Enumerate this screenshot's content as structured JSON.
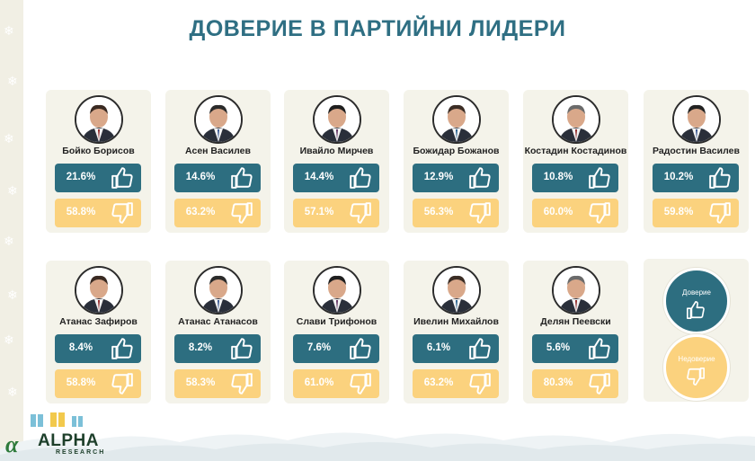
{
  "title": "ДОВЕРИЕ В ПАРТИЙНИ ЛИДЕРИ",
  "colors": {
    "trust": "#2d6e80",
    "distrust": "#fbd27e",
    "title": "#2f6f83",
    "card": "#f4f3ea"
  },
  "chart_data": {
    "type": "table",
    "title": "ДОВЕРИЕ В ПАРТИЙНИ ЛИДЕРИ",
    "columns": [
      "Доверие",
      "Недоверие"
    ],
    "leaders": [
      {
        "name": "Бойко Борисов",
        "trust": "21.6%",
        "distrust": "58.8%"
      },
      {
        "name": "Асен Василев",
        "trust": "14.6%",
        "distrust": "63.2%"
      },
      {
        "name": "Ивайло Мирчев",
        "trust": "14.4%",
        "distrust": "57.1%"
      },
      {
        "name": "Божидар Божанов",
        "trust": "12.9%",
        "distrust": "56.3%"
      },
      {
        "name": "Костадин Костадинов",
        "trust": "10.8%",
        "distrust": "60.0%"
      },
      {
        "name": "Радостин Василев",
        "trust": "10.2%",
        "distrust": "59.8%"
      },
      {
        "name": "Атанас Зафиров",
        "trust": "8.4%",
        "distrust": "58.8%"
      },
      {
        "name": "Атанас Атанасов",
        "trust": "8.2%",
        "distrust": "58.3%"
      },
      {
        "name": "Слави Трифонов",
        "trust": "7.6%",
        "distrust": "61.0%"
      },
      {
        "name": "Ивелин Михайлов",
        "trust": "6.1%",
        "distrust": "63.2%"
      },
      {
        "name": "Делян Пеевски",
        "trust": "5.6%",
        "distrust": "80.3%"
      }
    ]
  },
  "legend": {
    "trust_label": "Доверие",
    "distrust_label": "Недоверие"
  },
  "logo": {
    "word": "ALPHA",
    "sub": "RESEARCH"
  },
  "icons": {
    "trust": "thumbs-up-icon",
    "distrust": "thumbs-down-icon",
    "decor": "snowflake-icon"
  }
}
